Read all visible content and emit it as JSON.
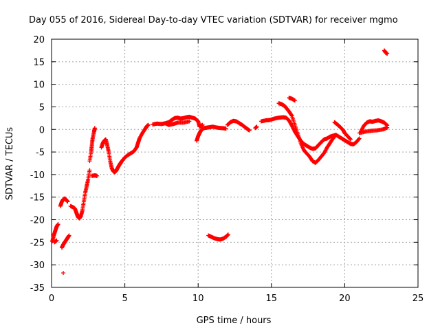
{
  "chart_data": {
    "type": "scatter",
    "title": "Day 055 of 2016, Sidereal Day-to-day VTEC variation (SDTVAR) for receiver mgmo",
    "xlabel": "GPS time / hours",
    "ylabel": "SDTVAR / TECUs",
    "xlim": [
      0,
      25
    ],
    "ylim": [
      -35,
      20
    ],
    "xticks": [
      0,
      5,
      10,
      15,
      20,
      25
    ],
    "yticks": [
      -35,
      -30,
      -25,
      -20,
      -15,
      -10,
      -5,
      0,
      5,
      10,
      15,
      20
    ],
    "grid": true,
    "marker": "plus",
    "color": "#ff0000",
    "series": [
      {
        "segments": [
          [
            [
              0.05,
              -24.8
            ],
            [
              0.15,
              -23.5
            ],
            [
              0.25,
              -22.5
            ],
            [
              0.35,
              -21.5
            ],
            [
              0.45,
              -21.0
            ]
          ],
          [
            [
              0.2,
              -25.0
            ],
            [
              0.35,
              -24.6
            ]
          ],
          [
            [
              0.6,
              -17.0
            ],
            [
              0.7,
              -16.0
            ],
            [
              0.8,
              -15.5
            ],
            [
              0.9,
              -15.3
            ],
            [
              1.0,
              -15.6
            ],
            [
              1.1,
              -16.0
            ]
          ],
          [
            [
              1.3,
              -17.0
            ],
            [
              1.5,
              -17.3
            ],
            [
              1.6,
              -17.6
            ],
            [
              1.7,
              -18.5
            ],
            [
              1.8,
              -19.4
            ],
            [
              1.9,
              -19.7
            ],
            [
              2.0,
              -19.2
            ],
            [
              2.1,
              -18.0
            ],
            [
              2.2,
              -16.0
            ],
            [
              2.3,
              -14.0
            ],
            [
              2.4,
              -12.5
            ],
            [
              2.5,
              -11.0
            ],
            [
              2.6,
              -9.0
            ]
          ],
          [
            [
              0.7,
              -26.2
            ],
            [
              0.8,
              -25.5
            ],
            [
              0.9,
              -25.0
            ],
            [
              1.0,
              -24.5
            ],
            [
              1.1,
              -24.0
            ],
            [
              1.2,
              -23.5
            ]
          ],
          [
            [
              0.8,
              -31.8
            ]
          ],
          [
            [
              2.6,
              -7.0
            ],
            [
              2.7,
              -5.0
            ],
            [
              2.75,
              -3.5
            ],
            [
              2.8,
              -2.0
            ],
            [
              2.9,
              -0.5
            ],
            [
              2.95,
              0.3
            ]
          ],
          [
            [
              2.75,
              -10.3
            ],
            [
              2.9,
              -10.2
            ],
            [
              3.0,
              -10.2
            ],
            [
              3.1,
              -10.3
            ]
          ],
          [
            [
              3.4,
              -4.0
            ],
            [
              3.5,
              -3.0
            ],
            [
              3.6,
              -2.5
            ],
            [
              3.7,
              -2.2
            ],
            [
              3.8,
              -3.5
            ],
            [
              3.9,
              -5.0
            ],
            [
              4.0,
              -7.0
            ],
            [
              4.1,
              -8.5
            ],
            [
              4.2,
              -9.2
            ],
            [
              4.3,
              -9.5
            ],
            [
              4.4,
              -9.2
            ],
            [
              4.5,
              -8.6
            ],
            [
              4.6,
              -8.0
            ],
            [
              4.7,
              -7.5
            ],
            [
              4.8,
              -7.0
            ],
            [
              5.0,
              -6.2
            ],
            [
              5.2,
              -5.7
            ],
            [
              5.4,
              -5.3
            ],
            [
              5.6,
              -4.9
            ],
            [
              5.8,
              -4.0
            ],
            [
              5.9,
              -3.0
            ],
            [
              6.0,
              -2.0
            ],
            [
              6.2,
              -0.8
            ],
            [
              6.4,
              0.2
            ],
            [
              6.5,
              0.7
            ],
            [
              6.6,
              1.0
            ]
          ],
          [
            [
              6.9,
              1.1
            ],
            [
              7.2,
              1.3
            ],
            [
              7.5,
              1.2
            ],
            [
              7.8,
              1.4
            ],
            [
              8.0,
              1.6
            ],
            [
              8.2,
              2.1
            ],
            [
              8.4,
              2.5
            ],
            [
              8.6,
              2.6
            ],
            [
              8.8,
              2.4
            ],
            [
              9.0,
              2.5
            ],
            [
              9.2,
              2.7
            ],
            [
              9.4,
              2.8
            ],
            [
              9.6,
              2.6
            ],
            [
              9.8,
              2.4
            ],
            [
              10.0,
              1.8
            ],
            [
              10.1,
              0.6
            ],
            [
              10.2,
              0.8
            ],
            [
              10.3,
              1.0
            ]
          ],
          [
            [
              7.8,
              1.3
            ],
            [
              8.0,
              1.0
            ],
            [
              8.3,
              1.2
            ],
            [
              8.6,
              1.5
            ],
            [
              9.0,
              1.5
            ],
            [
              9.4,
              1.8
            ]
          ],
          [
            [
              9.9,
              -2.5
            ],
            [
              10.0,
              -1.5
            ],
            [
              10.1,
              -0.8
            ],
            [
              10.2,
              -0.2
            ],
            [
              10.4,
              0.3
            ],
            [
              10.6,
              0.4
            ],
            [
              10.8,
              0.5
            ],
            [
              11.0,
              0.6
            ],
            [
              11.3,
              0.4
            ],
            [
              11.6,
              0.3
            ],
            [
              11.9,
              0.2
            ]
          ],
          [
            [
              10.7,
              -23.5
            ],
            [
              10.9,
              -23.8
            ],
            [
              11.1,
              -24.1
            ],
            [
              11.3,
              -24.3
            ],
            [
              11.5,
              -24.4
            ],
            [
              11.7,
              -24.2
            ],
            [
              11.9,
              -23.8
            ],
            [
              12.05,
              -23.3
            ]
          ],
          [
            [
              12.0,
              1.0
            ],
            [
              12.2,
              1.6
            ],
            [
              12.4,
              1.9
            ],
            [
              12.6,
              1.8
            ],
            [
              12.8,
              1.4
            ],
            [
              13.0,
              1.0
            ],
            [
              13.2,
              0.5
            ],
            [
              13.4,
              0.0
            ],
            [
              13.5,
              -0.2
            ]
          ],
          [
            [
              13.9,
              0.3
            ],
            [
              14.0,
              0.6
            ]
          ],
          [
            [
              14.3,
              1.8
            ],
            [
              14.6,
              2.0
            ],
            [
              14.9,
              2.1
            ],
            [
              15.2,
              2.4
            ],
            [
              15.5,
              2.6
            ],
            [
              15.8,
              2.7
            ],
            [
              16.0,
              2.6
            ],
            [
              16.2,
              2.0
            ],
            [
              16.4,
              0.8
            ],
            [
              16.6,
              -0.5
            ],
            [
              16.8,
              -1.5
            ]
          ],
          [
            [
              15.5,
              5.8
            ],
            [
              15.7,
              5.6
            ],
            [
              15.9,
              5.2
            ],
            [
              16.0,
              4.8
            ],
            [
              16.2,
              4.0
            ],
            [
              16.4,
              3.0
            ],
            [
              16.6,
              1.0
            ],
            [
              16.8,
              -1.0
            ],
            [
              17.0,
              -3.0
            ],
            [
              17.2,
              -4.5
            ],
            [
              17.4,
              -5.3
            ],
            [
              17.6,
              -6.0
            ],
            [
              17.8,
              -7.0
            ],
            [
              18.0,
              -7.4
            ],
            [
              18.2,
              -6.8
            ],
            [
              18.4,
              -6.0
            ],
            [
              18.6,
              -5.2
            ],
            [
              18.8,
              -4.0
            ],
            [
              19.0,
              -3.0
            ],
            [
              19.2,
              -2.0
            ],
            [
              19.4,
              -1.2
            ]
          ],
          [
            [
              16.2,
              7.0
            ],
            [
              16.4,
              6.8
            ],
            [
              16.6,
              6.4
            ]
          ],
          [
            [
              16.8,
              -1.5
            ],
            [
              17.0,
              -2.5
            ],
            [
              17.2,
              -3.2
            ],
            [
              17.4,
              -3.6
            ],
            [
              17.6,
              -4.0
            ],
            [
              17.8,
              -4.3
            ],
            [
              18.0,
              -4.2
            ],
            [
              18.2,
              -3.5
            ],
            [
              18.4,
              -2.8
            ],
            [
              18.6,
              -2.2
            ],
            [
              18.8,
              -2.0
            ],
            [
              19.0,
              -1.6
            ],
            [
              19.2,
              -1.4
            ],
            [
              19.4,
              -1.2
            ],
            [
              19.6,
              -1.6
            ],
            [
              19.8,
              -2.0
            ],
            [
              20.0,
              -2.4
            ],
            [
              20.2,
              -2.8
            ],
            [
              20.4,
              -3.2
            ],
            [
              20.6,
              -3.3
            ],
            [
              20.8,
              -2.8
            ],
            [
              21.0,
              -2.0
            ]
          ],
          [
            [
              19.3,
              1.6
            ],
            [
              19.5,
              1.1
            ],
            [
              19.7,
              0.5
            ],
            [
              19.9,
              -0.2
            ],
            [
              20.0,
              -0.8
            ],
            [
              20.2,
              -1.5
            ],
            [
              20.4,
              -2.2
            ]
          ],
          [
            [
              21.1,
              -0.5
            ],
            [
              21.3,
              0.8
            ],
            [
              21.5,
              1.5
            ],
            [
              21.7,
              1.8
            ],
            [
              21.9,
              1.7
            ],
            [
              22.1,
              1.9
            ],
            [
              22.3,
              2.0
            ],
            [
              22.5,
              1.8
            ],
            [
              22.7,
              1.5
            ],
            [
              22.9,
              0.9
            ]
          ],
          [
            [
              21.0,
              -0.8
            ],
            [
              21.4,
              -0.5
            ],
            [
              21.8,
              -0.3
            ],
            [
              22.2,
              -0.2
            ],
            [
              22.6,
              0.0
            ],
            [
              22.9,
              0.4
            ]
          ],
          [
            [
              22.7,
              17.5
            ],
            [
              22.8,
              17.0
            ],
            [
              22.9,
              16.8
            ]
          ]
        ]
      }
    ]
  }
}
